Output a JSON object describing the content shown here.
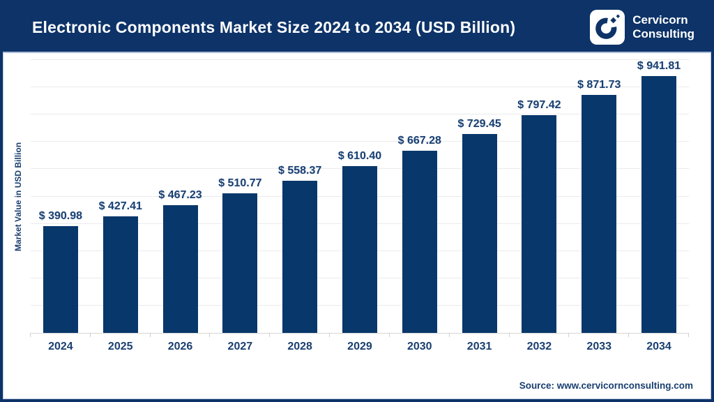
{
  "header": {
    "title": "Electronic Components Market Size 2024 to 2034 (USD Billion)",
    "logo": {
      "line1": "Cervicorn",
      "line2": "Consulting"
    }
  },
  "chart_data": {
    "type": "bar",
    "title": "Electronic Components Market Size 2024 to 2034 (USD Billion)",
    "categories": [
      "2024",
      "2025",
      "2026",
      "2027",
      "2028",
      "2029",
      "2030",
      "2031",
      "2032",
      "2033",
      "2034"
    ],
    "values": [
      390.98,
      427.41,
      467.23,
      510.77,
      558.37,
      610.4,
      667.28,
      729.45,
      797.42,
      871.73,
      941.81
    ],
    "value_labels": [
      "$ 390.98",
      "$ 427.41",
      "$ 467.23",
      "$ 510.77",
      "$ 558.37",
      "$ 610.40",
      "$ 667.28",
      "$ 729.45",
      "$ 797.42",
      "$ 871.73",
      "$ 941.81"
    ],
    "xlabel": "",
    "ylabel": "Market Value in USD Billion",
    "ylim": [
      0,
      1000
    ],
    "grid_interval": 100,
    "grid": true,
    "legend": "none"
  },
  "footer": {
    "source": "Source: www.cervicornconsulting.com"
  },
  "colors": {
    "header_bg": "#0d3368",
    "bar": "#08376b",
    "border": "#0d3368",
    "gridline": "#ebebeb",
    "axis_line": "#d6d6d6",
    "label_text": "#1a3f70",
    "title_text": "#ffffff"
  }
}
